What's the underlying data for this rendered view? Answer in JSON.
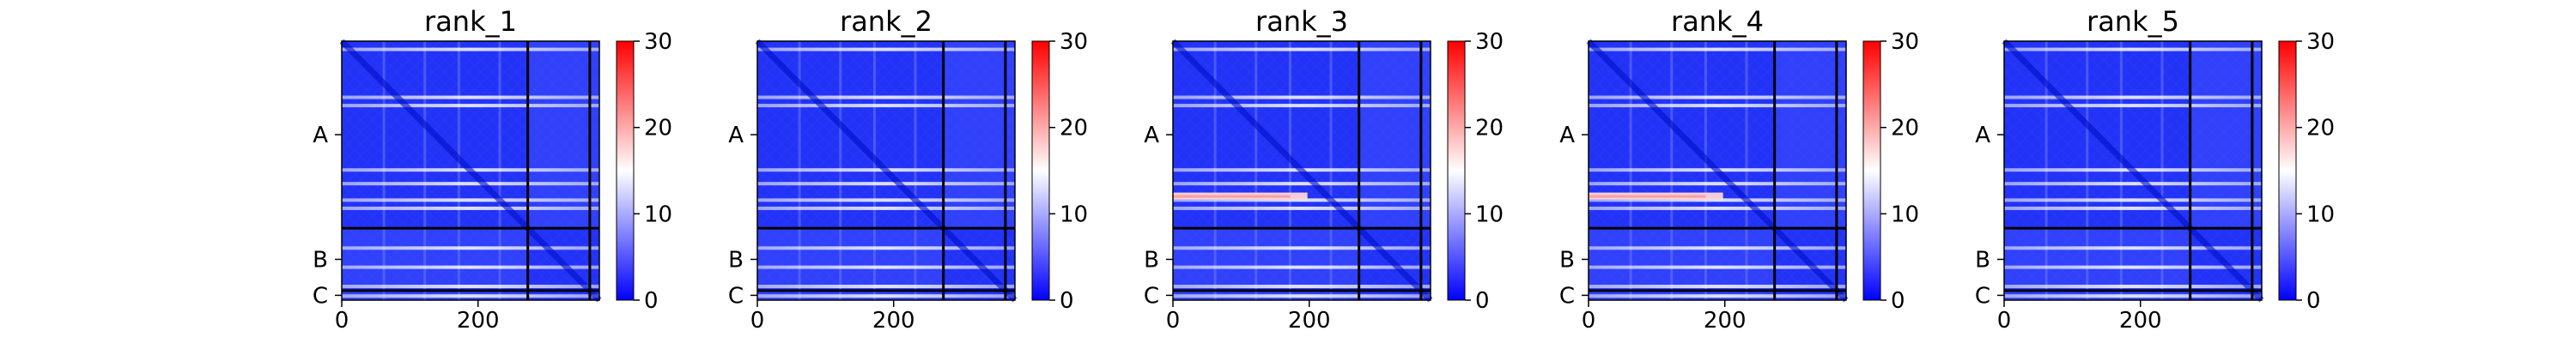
{
  "chart_data": [
    {
      "type": "heatmap",
      "title": "rank_1",
      "xticks": [
        0,
        200
      ],
      "yticks": [
        "A",
        "B",
        "C"
      ],
      "xlim": [
        0,
        378
      ],
      "chain_boundaries": [
        273,
        364
      ],
      "colorbar": {
        "ticks": [
          0,
          10,
          20,
          30
        ],
        "range": [
          0,
          30
        ],
        "colors": [
          "#0000ff",
          "#ffffff",
          "#ff0000"
        ]
      },
      "bright_rows": [
        12,
        82,
        94,
        188,
        208,
        232,
        244,
        302,
        330,
        358,
        372
      ],
      "hot_row": null
    },
    {
      "type": "heatmap",
      "title": "rank_2",
      "xticks": [
        0,
        200
      ],
      "yticks": [
        "A",
        "B",
        "C"
      ],
      "xlim": [
        0,
        378
      ],
      "chain_boundaries": [
        273,
        364
      ],
      "colorbar": {
        "ticks": [
          0,
          10,
          20,
          30
        ],
        "range": [
          0,
          30
        ],
        "colors": [
          "#0000ff",
          "#ffffff",
          "#ff0000"
        ]
      },
      "bright_rows": [
        12,
        82,
        94,
        188,
        208,
        232,
        244,
        302,
        330,
        358,
        372
      ],
      "hot_row": null
    },
    {
      "type": "heatmap",
      "title": "rank_3",
      "xticks": [
        0,
        200
      ],
      "yticks": [
        "A",
        "B",
        "C"
      ],
      "xlim": [
        0,
        378
      ],
      "chain_boundaries": [
        273,
        364
      ],
      "colorbar": {
        "ticks": [
          0,
          10,
          20,
          30
        ],
        "range": [
          0,
          30
        ],
        "colors": [
          "#0000ff",
          "#ffffff",
          "#ff0000"
        ]
      },
      "bright_rows": [
        12,
        82,
        94,
        188,
        208,
        232,
        244,
        302,
        330,
        358,
        372
      ],
      "hot_row": 226
    },
    {
      "type": "heatmap",
      "title": "rank_4",
      "xticks": [
        0,
        200
      ],
      "yticks": [
        "A",
        "B",
        "C"
      ],
      "xlim": [
        0,
        378
      ],
      "chain_boundaries": [
        273,
        364
      ],
      "colorbar": {
        "ticks": [
          0,
          10,
          20,
          30
        ],
        "range": [
          0,
          30
        ],
        "colors": [
          "#0000ff",
          "#ffffff",
          "#ff0000"
        ]
      },
      "bright_rows": [
        12,
        82,
        94,
        188,
        208,
        232,
        244,
        302,
        330,
        358,
        372
      ],
      "hot_row": 226
    },
    {
      "type": "heatmap",
      "title": "rank_5",
      "xticks": [
        0,
        200
      ],
      "yticks": [
        "A",
        "B",
        "C"
      ],
      "xlim": [
        0,
        378
      ],
      "chain_boundaries": [
        273,
        364
      ],
      "colorbar": {
        "ticks": [
          0,
          10,
          20,
          30
        ],
        "range": [
          0,
          30
        ],
        "colors": [
          "#0000ff",
          "#ffffff",
          "#ff0000"
        ]
      },
      "bright_rows": [
        12,
        82,
        94,
        188,
        208,
        232,
        244,
        302,
        330,
        358,
        372
      ],
      "hot_row": null
    }
  ]
}
